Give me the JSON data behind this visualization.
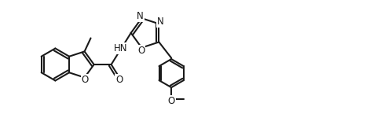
{
  "bg_color": "#ffffff",
  "line_color": "#1a1a1a",
  "line_width": 1.5,
  "font_size": 8.5,
  "figsize": [
    4.66,
    1.64
  ],
  "dpi": 100,
  "xlim": [
    0.0,
    9.3
  ],
  "ylim": [
    0.2,
    3.5
  ]
}
